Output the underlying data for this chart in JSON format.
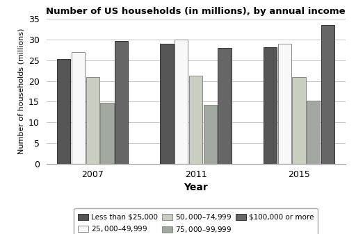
{
  "title": "Number of US households (in millions), by annual income",
  "xlabel": "Year",
  "ylabel": "Number of households (millions)",
  "years": [
    "2007",
    "2011",
    "2015"
  ],
  "categories": [
    "Less than $25,000",
    "$25,000–$49,999",
    "$50,000–$74,999",
    "$75,000–$99,999",
    "$100,000 or more"
  ],
  "values": {
    "Less than $25,000": [
      25.3,
      29.0,
      28.1
    ],
    "$25,000–$49,999": [
      27.0,
      30.0,
      29.0
    ],
    "$50,000–$74,999": [
      21.0,
      21.2,
      21.0
    ],
    "$75,000–$99,999": [
      14.8,
      14.2,
      15.3
    ],
    "$100,000 or more": [
      29.6,
      28.0,
      33.5
    ]
  },
  "colors": [
    "#555555",
    "#f8f8f8",
    "#c8cfc0",
    "#a0a8a0",
    "#666666"
  ],
  "edgecolors": [
    "#333333",
    "#888888",
    "#888888",
    "#888888",
    "#333333"
  ],
  "ylim": [
    0,
    35
  ],
  "yticks": [
    0,
    5,
    10,
    15,
    20,
    25,
    30,
    35
  ],
  "bar_width": 0.13,
  "background_color": "#ffffff",
  "grid_color": "#bbbbbb"
}
